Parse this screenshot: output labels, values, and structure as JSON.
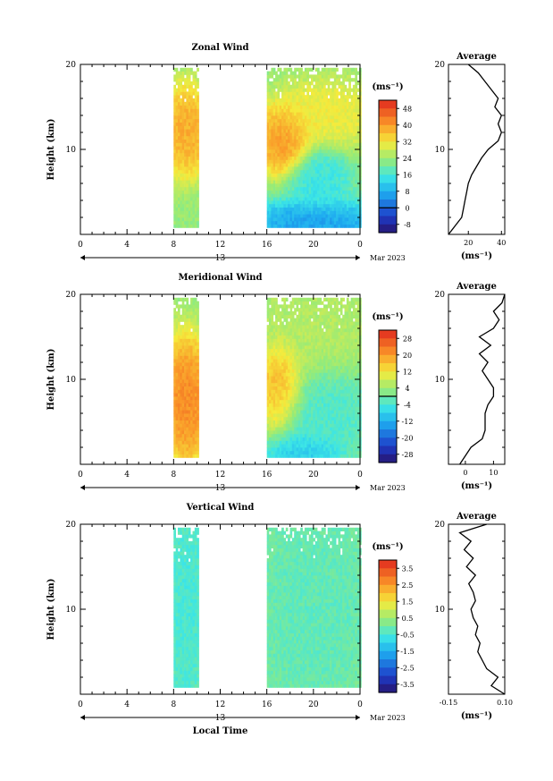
{
  "chart_data": [
    {
      "type": "heatmap",
      "title": "Zonal Wind",
      "ylabel": "Height (km)",
      "ylim": [
        0,
        20
      ],
      "y_ticks": [
        10,
        20
      ],
      "xlim": [
        0,
        24
      ],
      "x_tick_labels": [
        "0",
        "4",
        "8",
        "12",
        "16",
        "20",
        "0"
      ],
      "x_date_center": "13",
      "x_date_right": "Mar 2023",
      "data_time_ranges": [
        [
          8,
          10
        ],
        [
          16,
          24
        ]
      ],
      "colorbar": {
        "unit": "(ms⁻¹)",
        "ticks": [
          "48",
          "40",
          "32",
          "24",
          "16",
          "8",
          "0",
          "-8"
        ],
        "range": [
          -12,
          52
        ],
        "contour_level": 0
      },
      "structure": [
        {
          "t": [
            8,
            10
          ],
          "z": [
            9,
            15
          ],
          "value": 40
        },
        {
          "t": [
            16,
            18.5
          ],
          "z": [
            9,
            13
          ],
          "value": 42
        },
        {
          "t": [
            18,
            24
          ],
          "z": [
            12,
            16
          ],
          "value": 32
        },
        {
          "t": [
            19,
            22
          ],
          "z": [
            4,
            8
          ],
          "value": 14
        },
        {
          "t": [
            16,
            24
          ],
          "z": [
            0,
            2
          ],
          "value": 4
        }
      ],
      "average_profile": {
        "title": "Average",
        "xlabel": "(ms⁻¹)",
        "xlim": [
          8,
          42
        ],
        "x_ticks": [
          "20",
          "40"
        ],
        "height": [
          0,
          1,
          2,
          3,
          4,
          5,
          6,
          7,
          8,
          9,
          10,
          11,
          12,
          13,
          14,
          15,
          16,
          17,
          18,
          19,
          20
        ],
        "values": [
          8,
          12,
          16,
          17,
          18,
          19,
          20,
          22,
          25,
          28,
          32,
          38,
          40,
          38,
          40,
          36,
          38,
          34,
          30,
          26,
          20
        ]
      }
    },
    {
      "type": "heatmap",
      "title": "Meridional Wind",
      "ylabel": "Height (km)",
      "ylim": [
        0,
        20
      ],
      "y_ticks": [
        10,
        20
      ],
      "xlim": [
        0,
        24
      ],
      "x_tick_labels": [
        "0",
        "4",
        "8",
        "12",
        "16",
        "20",
        "0"
      ],
      "x_date_center": "13",
      "x_date_right": "Mar 2023",
      "data_time_ranges": [
        [
          8,
          10
        ],
        [
          16,
          24
        ]
      ],
      "colorbar": {
        "unit": "(ms⁻¹)",
        "ticks": [
          "28",
          "20",
          "12",
          "4",
          "-4",
          "-12",
          "-20",
          "-28"
        ],
        "range": [
          -32,
          32
        ],
        "contour_level": 0
      },
      "structure": [
        {
          "t": [
            8,
            10
          ],
          "z": [
            3,
            12
          ],
          "value": 24
        },
        {
          "t": [
            16,
            18
          ],
          "z": [
            6,
            12
          ],
          "value": 20
        },
        {
          "t": [
            18,
            24
          ],
          "z": [
            3,
            9
          ],
          "value": -4
        },
        {
          "t": [
            16,
            24
          ],
          "z": [
            12,
            20
          ],
          "value": 6
        },
        {
          "t": [
            17,
            21
          ],
          "z": [
            0,
            2
          ],
          "value": -10
        }
      ],
      "average_profile": {
        "title": "Average",
        "xlabel": "(ms⁻¹)",
        "xlim": [
          -6,
          14
        ],
        "x_ticks": [
          "0",
          "10"
        ],
        "height": [
          0,
          1,
          2,
          3,
          4,
          5,
          6,
          7,
          8,
          9,
          10,
          11,
          12,
          13,
          14,
          15,
          16,
          17,
          18,
          19,
          20
        ],
        "values": [
          -2,
          0,
          2,
          6,
          7,
          7,
          7,
          8,
          10,
          10,
          8,
          6,
          8,
          5,
          9,
          5,
          10,
          12,
          10,
          13,
          14
        ]
      }
    },
    {
      "type": "heatmap",
      "title": "Vertical Wind",
      "ylabel": "Height (km)",
      "ylim": [
        0,
        20
      ],
      "y_ticks": [
        10,
        20
      ],
      "xlim": [
        0,
        24
      ],
      "x_tick_labels": [
        "0",
        "4",
        "8",
        "12",
        "16",
        "20",
        "0"
      ],
      "x_date_center": "13",
      "x_date_right": "Mar 2023",
      "xlabel": "Local Time",
      "data_time_ranges": [
        [
          8,
          10
        ],
        [
          16,
          24
        ]
      ],
      "colorbar": {
        "unit": "(ms⁻¹)",
        "ticks": [
          "3.5",
          "2.5",
          "1.5",
          "0.5",
          "-0.5",
          "-1.5",
          "-2.5",
          "-3.5"
        ],
        "range": [
          -4,
          4
        ]
      },
      "structure": [
        {
          "t": [
            8,
            10
          ],
          "z": [
            0,
            20
          ],
          "value": -0.6
        },
        {
          "t": [
            16,
            24
          ],
          "z": [
            0,
            20
          ],
          "value": -0.3
        }
      ],
      "average_profile": {
        "title": "Average",
        "xlabel": "(ms⁻¹)",
        "xlim": [
          -0.15,
          0.1
        ],
        "x_ticks": [
          "-0.15",
          "0.10"
        ],
        "height": [
          0,
          1,
          2,
          3,
          4,
          5,
          6,
          7,
          8,
          9,
          10,
          11,
          12,
          13,
          14,
          15,
          16,
          17,
          18,
          19,
          20
        ],
        "values": [
          0.1,
          0.04,
          0.07,
          0.02,
          0.0,
          -0.02,
          -0.01,
          -0.03,
          -0.02,
          -0.04,
          -0.05,
          -0.03,
          -0.04,
          -0.06,
          -0.03,
          -0.07,
          -0.04,
          -0.08,
          -0.05,
          -0.1,
          0.02
        ]
      }
    }
  ]
}
